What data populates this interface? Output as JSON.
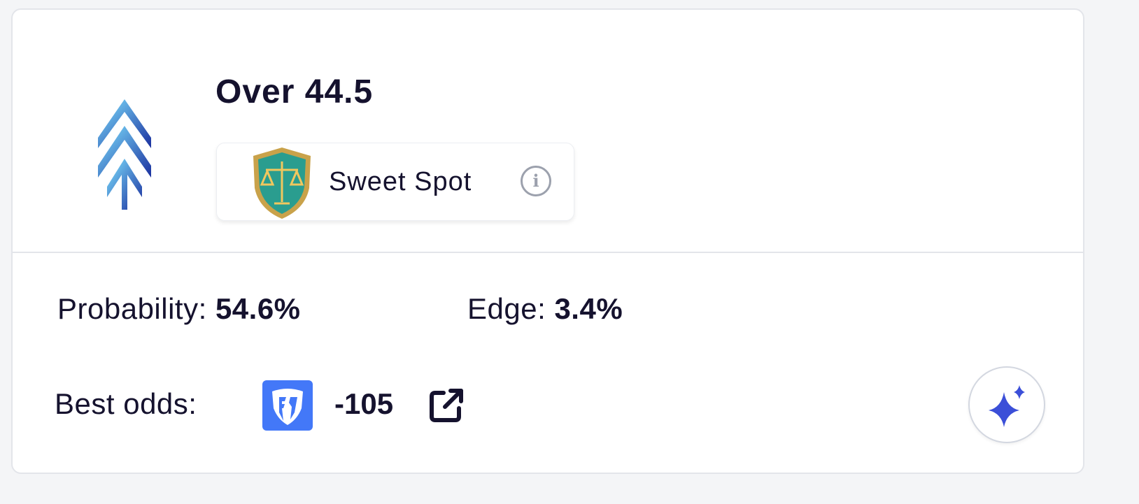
{
  "pick": {
    "title": "Over 44.5",
    "direction_icon": "triple-chevron-up-icon"
  },
  "badge": {
    "label": "Sweet Spot",
    "icon": "scales-shield-icon",
    "info_icon": "info-icon"
  },
  "stats": {
    "probability_label": "Probability:",
    "probability_value": "54.6%",
    "edge_label": "Edge:",
    "edge_value": "3.4%"
  },
  "odds": {
    "label": "Best odds:",
    "book_icon": "fanduel-logo",
    "value": "-105",
    "link_icon": "external-link-icon"
  },
  "ai_button": {
    "icon": "sparkle-icon"
  },
  "colors": {
    "text": "#15122e",
    "fanduel": "#4378f8",
    "sparkle": "#3b4fd8",
    "muted": "#9ca1ad"
  }
}
